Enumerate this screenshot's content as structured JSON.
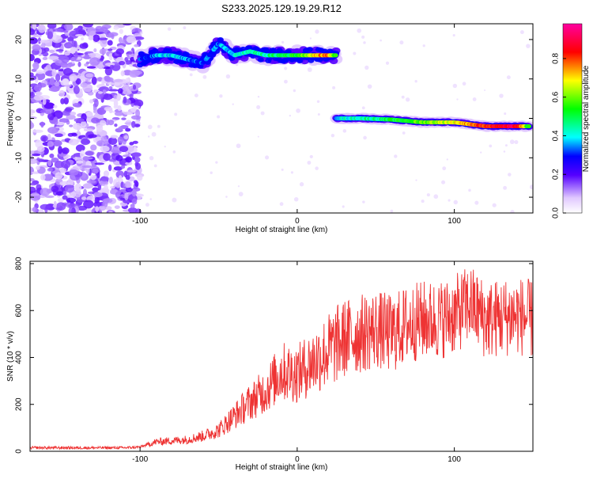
{
  "title": "S233.2025.129.19.29.R12",
  "chart_data": [
    {
      "type": "heatmap",
      "title": "S233.2025.129.19.29.R12",
      "xlabel": "Height of straight line (km)",
      "ylabel": "Frequency (Hz)",
      "xlim": [
        -170,
        150
      ],
      "ylim": [
        -24,
        24
      ],
      "x_ticks": [
        -100,
        0,
        100
      ],
      "x_tick_labels": [
        "-100",
        "0",
        "100"
      ],
      "y_ticks": [
        -20,
        -10,
        0,
        10,
        20
      ],
      "y_tick_labels": [
        "-20",
        "-10",
        "0",
        "10",
        "20"
      ],
      "colorbar": {
        "label": "Normalized spectral amplitude",
        "range": [
          0,
          0.98
        ],
        "ticks": [
          0,
          0.2,
          0.4,
          0.6,
          0.8
        ],
        "tick_labels": [
          "0.0",
          "0.2",
          "0.4",
          "0.6",
          "0.8"
        ]
      },
      "traces": [
        {
          "x": [
            -100,
            -90,
            -80,
            -70,
            -60,
            -50,
            -40,
            -30,
            -20,
            -10,
            0,
            10,
            20,
            25
          ],
          "freq": [
            15,
            16,
            16,
            15,
            14,
            19,
            16,
            17,
            16,
            16,
            16,
            16,
            16,
            16
          ],
          "amplitude": [
            0.3,
            0.35,
            0.4,
            0.35,
            0.3,
            0.35,
            0.4,
            0.45,
            0.45,
            0.5,
            0.55,
            0.7,
            0.8,
            0.5
          ]
        },
        {
          "x": [
            25,
            40,
            60,
            80,
            100,
            120,
            140,
            148
          ],
          "freq": [
            0,
            0,
            -0.3,
            -1,
            -1,
            -2,
            -2,
            -2
          ],
          "amplitude": [
            0.4,
            0.45,
            0.5,
            0.6,
            0.7,
            0.85,
            0.9,
            0.5
          ]
        }
      ],
      "noise_region": {
        "x": [
          -170,
          -100
        ],
        "amplitude_range": [
          0.05,
          0.2
        ]
      }
    },
    {
      "type": "line",
      "xlabel": "Height of straight line (km)",
      "ylabel": "SNR (10 * v/v)",
      "xlim": [
        -170,
        150
      ],
      "ylim": [
        0,
        810
      ],
      "x_ticks": [
        -100,
        0,
        100
      ],
      "x_tick_labels": [
        "-100",
        "0",
        "100"
      ],
      "y_ticks": [
        0,
        200,
        400,
        600,
        800
      ],
      "y_tick_labels": [
        "0",
        "200",
        "400",
        "600",
        "800"
      ],
      "series": [
        {
          "color": "#ee3333",
          "x": [
            -170,
            -150,
            -130,
            -110,
            -100,
            -90,
            -80,
            -70,
            -60,
            -50,
            -40,
            -30,
            -20,
            -10,
            0,
            10,
            20,
            30,
            40,
            50,
            60,
            70,
            80,
            90,
            100,
            110,
            120,
            130,
            140,
            150
          ],
          "values": [
            15,
            15,
            15,
            15,
            18,
            40,
            45,
            50,
            65,
            90,
            150,
            210,
            260,
            340,
            330,
            380,
            430,
            480,
            500,
            520,
            500,
            540,
            560,
            560,
            580,
            630,
            560,
            570,
            580,
            560
          ]
        }
      ]
    }
  ]
}
